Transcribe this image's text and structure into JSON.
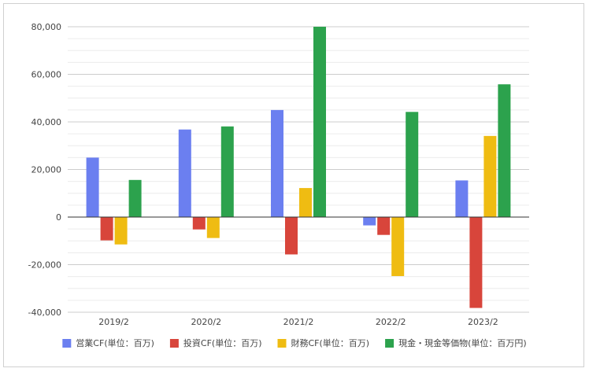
{
  "chart_data": {
    "type": "bar",
    "title": "",
    "xlabel": "",
    "ylabel": "",
    "categories": [
      "2019/2",
      "2020/2",
      "2021/2",
      "2022/2",
      "2023/2"
    ],
    "ylim": [
      -40000,
      80000
    ],
    "yticks": [
      80000,
      60000,
      40000,
      20000,
      0,
      -20000,
      -40000
    ],
    "ytick_labels": [
      "80,000",
      "60,000",
      "40,000",
      "20,000",
      "0",
      "-20,000",
      "-40,000"
    ],
    "grid": true,
    "legend_position": "bottom",
    "series": [
      {
        "name": "営業CF(単位：百万)",
        "color": "#6b7ff0",
        "values": [
          25000,
          36800,
          45000,
          -3500,
          15400
        ]
      },
      {
        "name": "投資CF(単位：百万)",
        "color": "#d8453b",
        "values": [
          -9800,
          -5200,
          -15700,
          -7500,
          -38200
        ]
      },
      {
        "name": "財務CF(単位：百万)",
        "color": "#efbc12",
        "values": [
          -11500,
          -8800,
          12200,
          -24800,
          34100
        ]
      },
      {
        "name": "現金・現金等価物(単位：百万円)",
        "color": "#2ca24d",
        "values": [
          15600,
          38100,
          80000,
          44200,
          55800
        ]
      }
    ]
  }
}
